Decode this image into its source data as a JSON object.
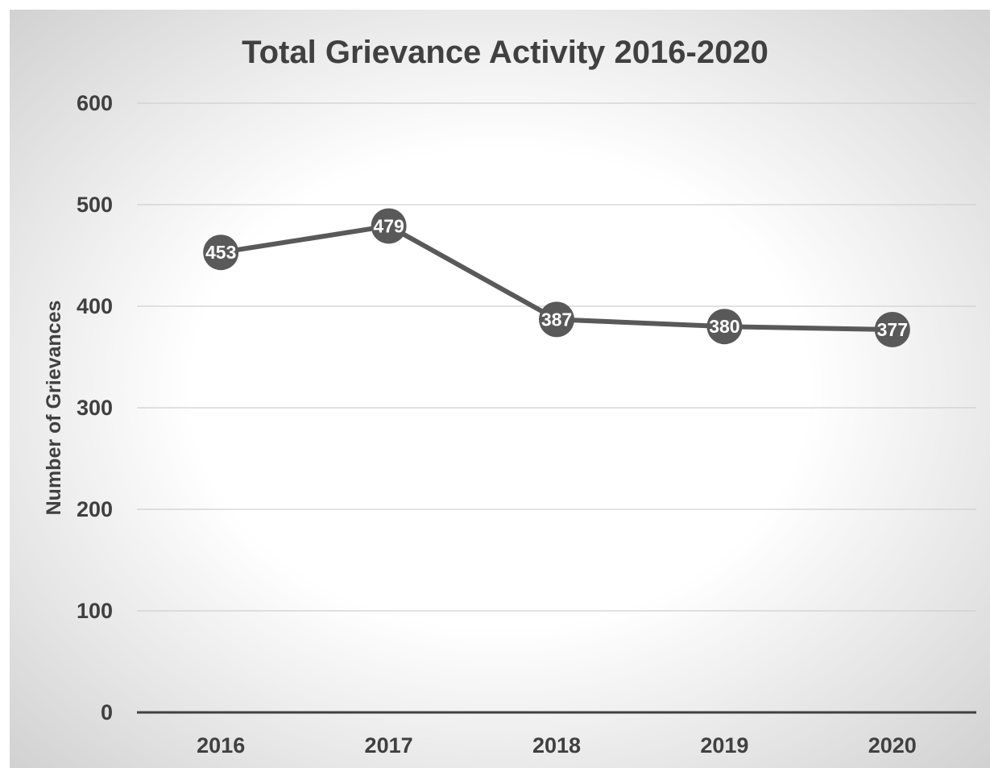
{
  "chart_data": {
    "type": "line",
    "title": "Total Grievance Activity 2016-2020",
    "xlabel": "",
    "ylabel": "Number of Grievances",
    "categories": [
      "2016",
      "2017",
      "2018",
      "2019",
      "2020"
    ],
    "values": [
      453,
      479,
      387,
      380,
      377
    ],
    "ylim": [
      0,
      600
    ],
    "yticks": [
      0,
      100,
      200,
      300,
      400,
      500,
      600
    ],
    "grid": true,
    "legend": "none",
    "data_labels": true,
    "colors": {
      "line": "#595959",
      "marker": "#595959",
      "marker_label": "#ffffff",
      "text": "#404040",
      "gridline": "#d0d0d0",
      "axis": "#404040"
    }
  }
}
